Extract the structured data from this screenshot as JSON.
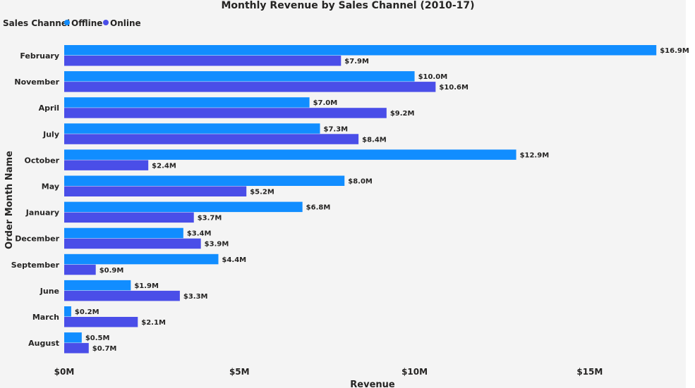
{
  "chart_data": {
    "type": "bar",
    "orientation": "horizontal",
    "title": "Monthly Revenue by Sales Channel (2010-17)",
    "legend": {
      "title": "Sales Channel",
      "placement": "top-left"
    },
    "xlabel": "Revenue",
    "ylabel": "Order Month Name",
    "xlim": [
      0,
      17.5
    ],
    "xunit": "M",
    "xticks": [
      {
        "value": 0,
        "label": "$0M"
      },
      {
        "value": 5,
        "label": "$5M"
      },
      {
        "value": 10,
        "label": "$10M"
      },
      {
        "value": 15,
        "label": "$15M"
      }
    ],
    "grid": false,
    "categories": [
      "February",
      "November",
      "April",
      "July",
      "October",
      "May",
      "January",
      "December",
      "September",
      "June",
      "March",
      "August"
    ],
    "series": [
      {
        "name": "Offline",
        "color": "#118dff",
        "values": [
          16.9,
          10.0,
          7.0,
          7.3,
          12.9,
          8.0,
          6.8,
          3.4,
          4.4,
          1.9,
          0.2,
          0.5
        ],
        "labels": [
          "$16.9M",
          "$10.0M",
          "$7.0M",
          "$7.3M",
          "$12.9M",
          "$8.0M",
          "$6.8M",
          "$3.4M",
          "$4.4M",
          "$1.9M",
          "$0.2M",
          "$0.5M"
        ]
      },
      {
        "name": "Online",
        "color": "#4a4ee8",
        "values": [
          7.9,
          10.6,
          9.2,
          8.4,
          2.4,
          5.2,
          3.7,
          3.9,
          0.9,
          3.3,
          2.1,
          0.7
        ],
        "labels": [
          "$7.9M",
          "$10.6M",
          "$9.2M",
          "$8.4M",
          "$2.4M",
          "$5.2M",
          "$3.7M",
          "$3.9M",
          "$0.9M",
          "$3.3M",
          "$2.1M",
          "$0.7M"
        ]
      }
    ]
  }
}
